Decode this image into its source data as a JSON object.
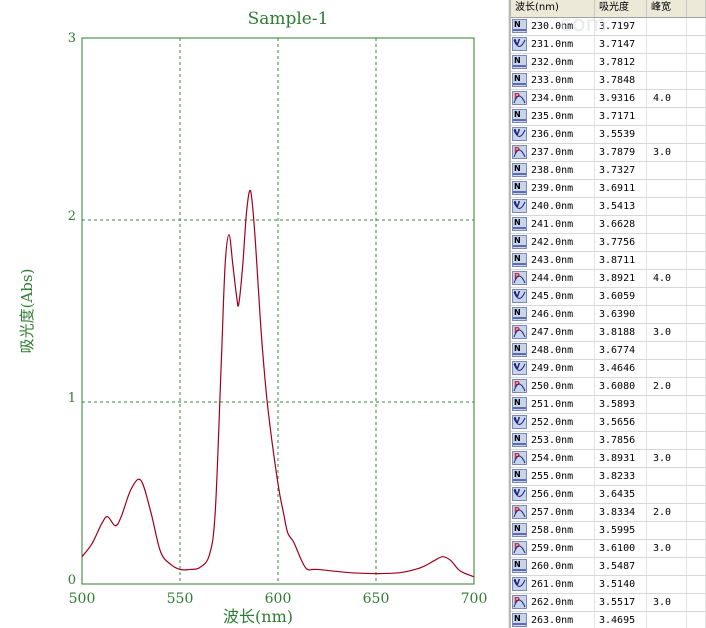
{
  "chart_data": {
    "type": "line",
    "title": "Sample-1",
    "xlabel": "波长(nm)",
    "ylabel": "吸光度(Abs)",
    "xlim": [
      500,
      700
    ],
    "ylim": [
      0,
      3
    ],
    "xticks": [
      500,
      550,
      600,
      650,
      700
    ],
    "yticks": [
      0,
      1,
      2,
      3
    ],
    "grid": true,
    "series": [
      {
        "color": "#a0001e",
        "x": [
          500,
          505,
          510,
          513,
          517,
          520,
          525,
          530,
          535,
          540,
          545,
          550,
          555,
          560,
          565,
          568,
          571,
          573,
          575,
          577,
          579,
          580,
          582,
          584,
          586,
          588,
          590,
          592,
          595,
          600,
          603,
          605,
          608,
          612,
          615,
          620,
          640,
          660,
          670,
          675,
          680,
          684,
          688,
          692,
          695,
          700
        ],
        "y": [
          0.15,
          0.22,
          0.33,
          0.37,
          0.32,
          0.37,
          0.52,
          0.57,
          0.4,
          0.18,
          0.11,
          0.08,
          0.08,
          0.09,
          0.16,
          0.4,
          1.2,
          1.75,
          1.92,
          1.75,
          1.57,
          1.54,
          1.75,
          2.05,
          2.16,
          1.95,
          1.62,
          1.3,
          0.95,
          0.55,
          0.38,
          0.28,
          0.23,
          0.13,
          0.08,
          0.08,
          0.06,
          0.06,
          0.08,
          0.1,
          0.13,
          0.15,
          0.13,
          0.08,
          0.06,
          0.04
        ]
      }
    ]
  },
  "table": {
    "headers": [
      "波长(nm)",
      "吸光度",
      "峰宽"
    ],
    "rows": [
      {
        "type": "N",
        "wl": "230.0nm",
        "abs": "3.7197",
        "width": ""
      },
      {
        "type": "V",
        "wl": "231.0nm",
        "abs": "3.7147",
        "width": ""
      },
      {
        "type": "N",
        "wl": "232.0nm",
        "abs": "3.7812",
        "width": ""
      },
      {
        "type": "N",
        "wl": "233.0nm",
        "abs": "3.7848",
        "width": ""
      },
      {
        "type": "P",
        "wl": "234.0nm",
        "abs": "3.9316",
        "width": "4.0"
      },
      {
        "type": "N",
        "wl": "235.0nm",
        "abs": "3.7171",
        "width": ""
      },
      {
        "type": "V",
        "wl": "236.0nm",
        "abs": "3.5539",
        "width": ""
      },
      {
        "type": "P",
        "wl": "237.0nm",
        "abs": "3.7879",
        "width": "3.0"
      },
      {
        "type": "N",
        "wl": "238.0nm",
        "abs": "3.7327",
        "width": ""
      },
      {
        "type": "N",
        "wl": "239.0nm",
        "abs": "3.6911",
        "width": ""
      },
      {
        "type": "V",
        "wl": "240.0nm",
        "abs": "3.5413",
        "width": ""
      },
      {
        "type": "N",
        "wl": "241.0nm",
        "abs": "3.6628",
        "width": ""
      },
      {
        "type": "N",
        "wl": "242.0nm",
        "abs": "3.7756",
        "width": ""
      },
      {
        "type": "N",
        "wl": "243.0nm",
        "abs": "3.8711",
        "width": ""
      },
      {
        "type": "P",
        "wl": "244.0nm",
        "abs": "3.8921",
        "width": "4.0"
      },
      {
        "type": "V",
        "wl": "245.0nm",
        "abs": "3.6059",
        "width": ""
      },
      {
        "type": "N",
        "wl": "246.0nm",
        "abs": "3.6390",
        "width": ""
      },
      {
        "type": "P",
        "wl": "247.0nm",
        "abs": "3.8188",
        "width": "3.0"
      },
      {
        "type": "N",
        "wl": "248.0nm",
        "abs": "3.6774",
        "width": ""
      },
      {
        "type": "V",
        "wl": "249.0nm",
        "abs": "3.4646",
        "width": ""
      },
      {
        "type": "P",
        "wl": "250.0nm",
        "abs": "3.6080",
        "width": "2.0"
      },
      {
        "type": "N",
        "wl": "251.0nm",
        "abs": "3.5893",
        "width": ""
      },
      {
        "type": "V",
        "wl": "252.0nm",
        "abs": "3.5656",
        "width": ""
      },
      {
        "type": "N",
        "wl": "253.0nm",
        "abs": "3.7856",
        "width": ""
      },
      {
        "type": "P",
        "wl": "254.0nm",
        "abs": "3.8931",
        "width": "3.0"
      },
      {
        "type": "N",
        "wl": "255.0nm",
        "abs": "3.8233",
        "width": ""
      },
      {
        "type": "V",
        "wl": "256.0nm",
        "abs": "3.6435",
        "width": ""
      },
      {
        "type": "P",
        "wl": "257.0nm",
        "abs": "3.8334",
        "width": "2.0"
      },
      {
        "type": "N",
        "wl": "258.0nm",
        "abs": "3.5995",
        "width": ""
      },
      {
        "type": "P",
        "wl": "259.0nm",
        "abs": "3.6100",
        "width": "3.0"
      },
      {
        "type": "N",
        "wl": "260.0nm",
        "abs": "3.5487",
        "width": ""
      },
      {
        "type": "V",
        "wl": "261.0nm",
        "abs": "3.5140",
        "width": ""
      },
      {
        "type": "P",
        "wl": "262.0nm",
        "abs": "3.5517",
        "width": "3.0"
      },
      {
        "type": "N",
        "wl": "263.0nm",
        "abs": "3.4695",
        "width": ""
      }
    ]
  },
  "colors": {
    "axis": "#2e7d32",
    "grid": "#3a8a3a",
    "curve": "#a0001e",
    "title": "#2e7d32"
  },
  "watermark": "com"
}
